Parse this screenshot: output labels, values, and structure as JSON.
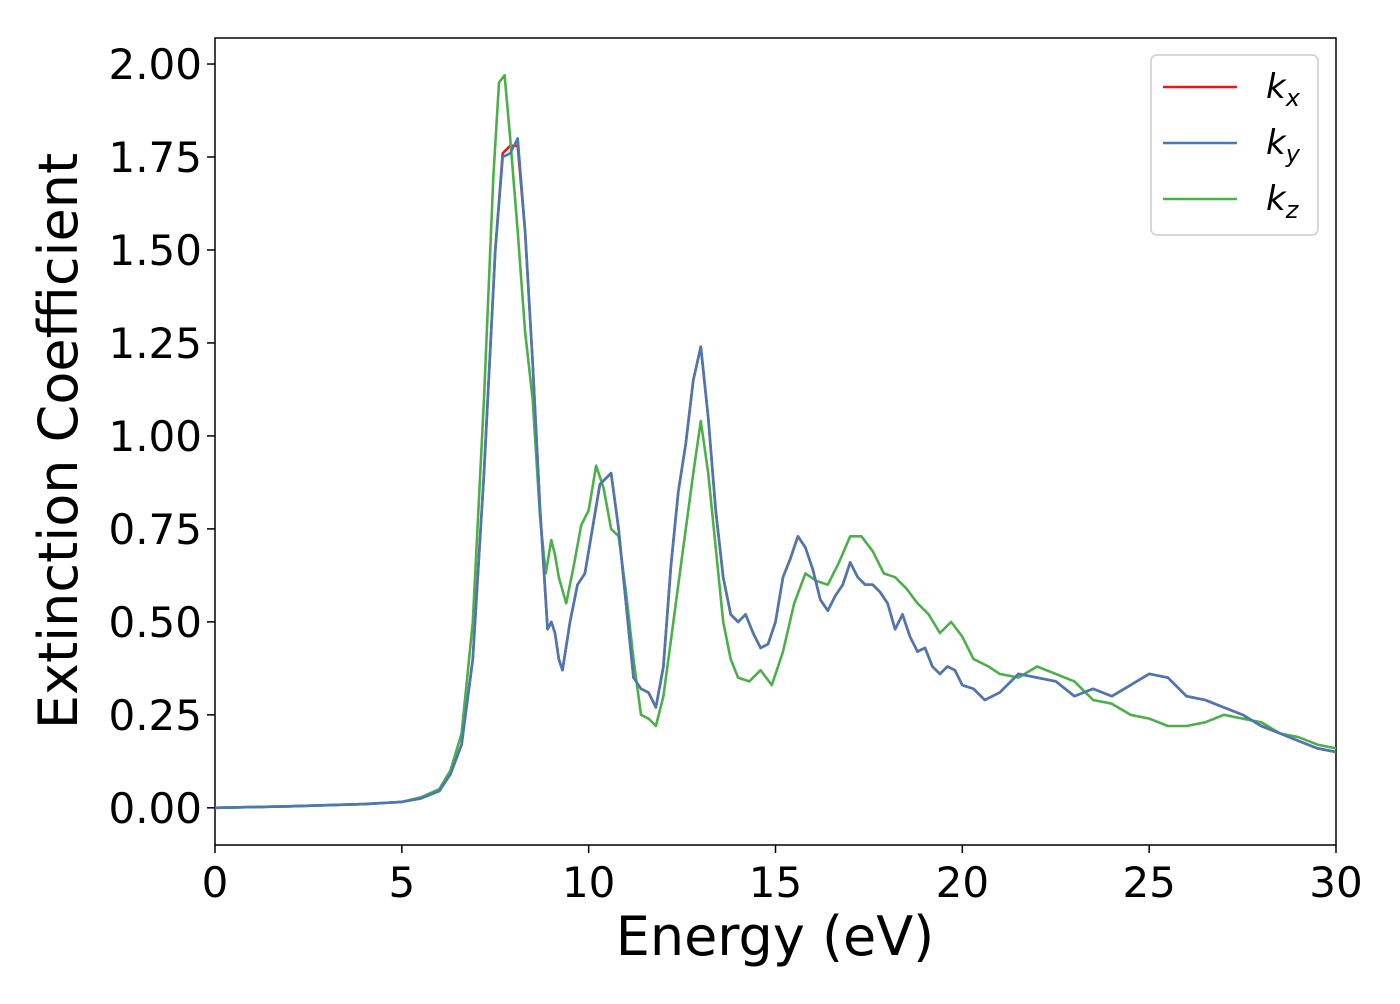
{
  "chart_data": {
    "type": "line",
    "title": "",
    "xlabel": "Energy (eV)",
    "ylabel": "Extinction Coefficient",
    "xlim": [
      0,
      30
    ],
    "ylim": [
      -0.1,
      2.07
    ],
    "x_ticks": [
      "0",
      "5",
      "10",
      "15",
      "20",
      "25",
      "30"
    ],
    "x_tick_values": [
      0,
      5,
      10,
      15,
      20,
      25,
      30
    ],
    "y_ticks": [
      "0.00",
      "0.25",
      "0.50",
      "0.75",
      "1.00",
      "1.25",
      "1.50",
      "1.75",
      "2.00"
    ],
    "y_tick_values": [
      0,
      0.25,
      0.5,
      0.75,
      1.0,
      1.25,
      1.5,
      1.75,
      2.0
    ],
    "grid": false,
    "legend_position": "top-right",
    "series": [
      {
        "name": "k_x",
        "label_main": "k",
        "label_sub": "x",
        "color": "#e41a1c",
        "x": [
          0,
          1,
          2,
          3,
          4,
          5,
          5.5,
          6.0,
          6.3,
          6.6,
          6.9,
          7.2,
          7.5,
          7.7,
          7.9,
          8.1,
          8.3,
          8.5,
          8.7,
          8.9,
          9.0,
          9.1,
          9.2,
          9.3,
          9.5,
          9.7,
          9.9,
          10.1,
          10.3,
          10.6,
          10.8,
          11.0,
          11.2,
          11.4,
          11.6,
          11.8,
          12.0,
          12.2,
          12.4,
          12.6,
          12.8,
          13.0,
          13.2,
          13.4,
          13.6,
          13.8,
          14.0,
          14.2,
          14.4,
          14.6,
          14.8,
          15.0,
          15.2,
          15.4,
          15.6,
          15.8,
          16.0,
          16.2,
          16.4,
          16.6,
          16.8,
          17.0,
          17.2,
          17.4,
          17.6,
          17.8,
          18.0,
          18.2,
          18.4,
          18.6,
          18.8,
          19.0,
          19.2,
          19.4,
          19.6,
          19.8,
          20.0,
          20.3,
          20.6,
          21.0,
          21.5,
          22.0,
          22.5,
          23.0,
          23.5,
          24.0,
          24.5,
          25.0,
          25.5,
          26.0,
          26.5,
          27.0,
          27.5,
          28.0,
          28.5,
          29.0,
          29.5,
          30.0
        ],
        "y": [
          0.0,
          0.002,
          0.004,
          0.007,
          0.01,
          0.016,
          0.025,
          0.045,
          0.09,
          0.17,
          0.4,
          0.9,
          1.5,
          1.76,
          1.78,
          1.78,
          1.55,
          1.2,
          0.8,
          0.48,
          0.5,
          0.47,
          0.4,
          0.37,
          0.5,
          0.6,
          0.63,
          0.75,
          0.87,
          0.9,
          0.75,
          0.55,
          0.35,
          0.32,
          0.31,
          0.27,
          0.38,
          0.65,
          0.85,
          0.98,
          1.15,
          1.24,
          1.05,
          0.8,
          0.62,
          0.52,
          0.5,
          0.52,
          0.47,
          0.43,
          0.44,
          0.5,
          0.62,
          0.67,
          0.73,
          0.7,
          0.64,
          0.56,
          0.53,
          0.57,
          0.6,
          0.66,
          0.62,
          0.6,
          0.6,
          0.58,
          0.55,
          0.48,
          0.52,
          0.46,
          0.42,
          0.43,
          0.38,
          0.36,
          0.38,
          0.37,
          0.33,
          0.32,
          0.29,
          0.31,
          0.36,
          0.35,
          0.34,
          0.3,
          0.32,
          0.3,
          0.33,
          0.36,
          0.35,
          0.3,
          0.29,
          0.27,
          0.25,
          0.22,
          0.2,
          0.18,
          0.16,
          0.15
        ]
      },
      {
        "name": "k_y",
        "label_main": "k",
        "label_sub": "y",
        "color": "#4a78b2",
        "x": [
          0,
          1,
          2,
          3,
          4,
          5,
          5.5,
          6.0,
          6.3,
          6.6,
          6.9,
          7.2,
          7.5,
          7.7,
          7.9,
          8.1,
          8.3,
          8.5,
          8.7,
          8.9,
          9.0,
          9.1,
          9.2,
          9.3,
          9.5,
          9.7,
          9.9,
          10.1,
          10.3,
          10.6,
          10.8,
          11.0,
          11.2,
          11.4,
          11.6,
          11.8,
          12.0,
          12.2,
          12.4,
          12.6,
          12.8,
          13.0,
          13.2,
          13.4,
          13.6,
          13.8,
          14.0,
          14.2,
          14.4,
          14.6,
          14.8,
          15.0,
          15.2,
          15.4,
          15.6,
          15.8,
          16.0,
          16.2,
          16.4,
          16.6,
          16.8,
          17.0,
          17.2,
          17.4,
          17.6,
          17.8,
          18.0,
          18.2,
          18.4,
          18.6,
          18.8,
          19.0,
          19.2,
          19.4,
          19.6,
          19.8,
          20.0,
          20.3,
          20.6,
          21.0,
          21.5,
          22.0,
          22.5,
          23.0,
          23.5,
          24.0,
          24.5,
          25.0,
          25.5,
          26.0,
          26.5,
          27.0,
          27.5,
          28.0,
          28.5,
          29.0,
          29.5,
          30.0
        ],
        "y": [
          0.0,
          0.002,
          0.004,
          0.007,
          0.01,
          0.016,
          0.025,
          0.045,
          0.09,
          0.17,
          0.4,
          0.9,
          1.5,
          1.75,
          1.76,
          1.8,
          1.55,
          1.2,
          0.8,
          0.48,
          0.5,
          0.47,
          0.4,
          0.37,
          0.5,
          0.6,
          0.63,
          0.75,
          0.87,
          0.9,
          0.75,
          0.55,
          0.35,
          0.32,
          0.31,
          0.27,
          0.38,
          0.65,
          0.85,
          0.98,
          1.15,
          1.24,
          1.05,
          0.8,
          0.62,
          0.52,
          0.5,
          0.52,
          0.47,
          0.43,
          0.44,
          0.5,
          0.62,
          0.67,
          0.73,
          0.7,
          0.64,
          0.56,
          0.53,
          0.57,
          0.6,
          0.66,
          0.62,
          0.6,
          0.6,
          0.58,
          0.55,
          0.48,
          0.52,
          0.46,
          0.42,
          0.43,
          0.38,
          0.36,
          0.38,
          0.37,
          0.33,
          0.32,
          0.29,
          0.31,
          0.36,
          0.35,
          0.34,
          0.3,
          0.32,
          0.3,
          0.33,
          0.36,
          0.35,
          0.3,
          0.29,
          0.27,
          0.25,
          0.22,
          0.2,
          0.18,
          0.16,
          0.15
        ]
      },
      {
        "name": "k_z",
        "label_main": "k",
        "label_sub": "z",
        "color": "#4daf4a",
        "x": [
          0,
          1,
          2,
          3,
          4,
          5,
          5.5,
          6.0,
          6.3,
          6.6,
          6.9,
          7.2,
          7.45,
          7.6,
          7.75,
          7.9,
          8.1,
          8.3,
          8.5,
          8.7,
          8.85,
          9.0,
          9.1,
          9.2,
          9.4,
          9.6,
          9.8,
          10.0,
          10.2,
          10.4,
          10.6,
          10.8,
          11.0,
          11.2,
          11.4,
          11.6,
          11.8,
          12.0,
          12.2,
          12.4,
          12.6,
          12.8,
          13.0,
          13.2,
          13.4,
          13.6,
          13.8,
          14.0,
          14.3,
          14.6,
          14.9,
          15.2,
          15.5,
          15.8,
          16.1,
          16.4,
          16.7,
          17.0,
          17.3,
          17.6,
          17.9,
          18.2,
          18.5,
          18.8,
          19.1,
          19.4,
          19.7,
          20.0,
          20.3,
          20.7,
          21.0,
          21.5,
          22.0,
          22.5,
          23.0,
          23.5,
          24.0,
          24.5,
          25.0,
          25.5,
          26.0,
          26.5,
          27.0,
          27.5,
          28.0,
          28.5,
          29.0,
          29.5,
          30.0
        ],
        "y": [
          0.0,
          0.002,
          0.004,
          0.007,
          0.01,
          0.016,
          0.028,
          0.05,
          0.1,
          0.2,
          0.5,
          1.1,
          1.7,
          1.95,
          1.97,
          1.8,
          1.55,
          1.28,
          1.1,
          0.78,
          0.63,
          0.72,
          0.68,
          0.62,
          0.55,
          0.65,
          0.76,
          0.8,
          0.92,
          0.86,
          0.75,
          0.73,
          0.58,
          0.4,
          0.25,
          0.24,
          0.22,
          0.3,
          0.45,
          0.6,
          0.75,
          0.9,
          1.04,
          0.9,
          0.7,
          0.5,
          0.4,
          0.35,
          0.34,
          0.37,
          0.33,
          0.42,
          0.55,
          0.63,
          0.61,
          0.6,
          0.66,
          0.73,
          0.73,
          0.69,
          0.63,
          0.62,
          0.59,
          0.55,
          0.52,
          0.47,
          0.5,
          0.46,
          0.4,
          0.38,
          0.36,
          0.35,
          0.38,
          0.36,
          0.34,
          0.29,
          0.28,
          0.25,
          0.24,
          0.22,
          0.22,
          0.23,
          0.25,
          0.24,
          0.23,
          0.2,
          0.19,
          0.17,
          0.16
        ]
      }
    ]
  }
}
